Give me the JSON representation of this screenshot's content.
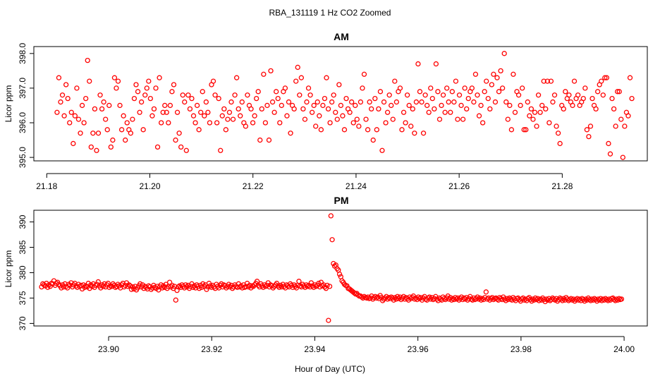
{
  "chart_data": {
    "type": "scatter",
    "title": "RBA_131119  1 Hz CO2 Zoomed",
    "xlabel": "Hour of Day (UTC)",
    "point_color": "#ff0000",
    "panels": [
      {
        "title": "AM",
        "ylabel": "Licor ppm",
        "xlim": [
          21.1775,
          21.2965
        ],
        "ylim": [
          394.9,
          398.2
        ],
        "x_ticks": [
          21.18,
          21.2,
          21.22,
          21.24,
          21.26,
          21.28
        ],
        "x_tick_labels": [
          "21.18",
          "21.20",
          "21.22",
          "21.24",
          "21.26",
          "21.28"
        ],
        "y_ticks": [
          395,
          396,
          397,
          398
        ],
        "y_tick_labels": [
          "395.0",
          "396.0",
          "397.0",
          "398.0"
        ],
        "x_start": 21.182,
        "x_end": 21.2935,
        "y_values": [
          396.3,
          397.3,
          396.6,
          396.8,
          396.2,
          397.1,
          396.7,
          396.0,
          396.3,
          395.4,
          396.2,
          397.0,
          396.1,
          395.7,
          396.5,
          396.0,
          396.7,
          397.8,
          397.2,
          395.3,
          395.7,
          396.4,
          395.2,
          395.7,
          396.8,
          396.4,
          396.6,
          396.1,
          395.8,
          396.5,
          395.3,
          395.5,
          397.3,
          397.0,
          397.2,
          396.5,
          395.8,
          396.2,
          395.5,
          396.0,
          395.8,
          395.7,
          396.1,
          396.7,
          397.1,
          396.9,
          396.3,
          396.6,
          395.8,
          396.8,
          397.0,
          397.2,
          396.7,
          396.2,
          396.4,
          397.0,
          395.3,
          397.3,
          396.0,
          396.3,
          396.5,
          396.3,
          396.0,
          396.5,
          396.9,
          397.1,
          395.5,
          396.3,
          395.7,
          395.3,
          396.8,
          396.6,
          395.2,
          396.8,
          396.4,
          396.7,
          396.2,
          396.0,
          396.5,
          395.8,
          396.3,
          396.9,
          396.2,
          396.6,
          396.3,
          396.0,
          397.1,
          397.2,
          396.8,
          396.0,
          396.7,
          395.2,
          396.2,
          396.4,
          395.8,
          396.1,
          396.3,
          396.6,
          396.1,
          396.8,
          397.3,
          396.4,
          396.2,
          396.6,
          396.0,
          395.9,
          396.8,
          396.5,
          396.4,
          396.0,
          396.2,
          396.7,
          396.9,
          395.5,
          396.4,
          397.4,
          396.0,
          396.5,
          395.5,
          397.5,
          396.6,
          396.3,
          396.9,
          396.7,
          396.0,
          396.5,
          396.9,
          397.0,
          396.2,
          396.6,
          395.7,
          396.5,
          396.4,
          397.2,
          397.6,
          396.8,
          397.3,
          396.4,
          396.1,
          396.6,
          397.0,
          396.8,
          396.3,
          396.5,
          395.9,
          396.6,
          396.2,
          395.8,
          396.5,
          396.7,
          397.3,
          396.4,
          396.0,
          396.6,
          396.8,
          396.3,
          396.1,
          397.1,
          396.5,
          396.2,
          395.8,
          396.7,
          396.4,
          396.3,
          396.6,
          396.0,
          396.5,
          396.1,
          395.9,
          396.6,
          397.0,
          397.4,
          396.1,
          395.8,
          396.6,
          396.4,
          395.5,
          396.7,
          395.8,
          396.4,
          396.9,
          395.2,
          396.6,
          396.0,
          396.3,
          396.8,
          396.5,
          396.1,
          397.2,
          396.6,
          396.9,
          397.0,
          395.8,
          396.3,
          396.0,
          396.8,
          396.5,
          395.9,
          396.4,
          395.7,
          396.6,
          397.7,
          396.9,
          396.6,
          395.7,
          396.8,
          396.5,
          396.3,
          397.0,
          396.7,
          396.4,
          397.7,
          396.9,
          396.1,
          396.5,
          396.8,
          396.3,
          397.0,
          396.6,
          396.3,
          396.9,
          396.6,
          397.2,
          396.1,
          396.8,
          396.5,
          396.1,
          397.0,
          396.4,
          396.7,
          396.9,
          397.0,
          396.6,
          397.4,
          396.8,
          396.2,
          396.5,
          396.0,
          396.9,
          397.2,
          396.7,
          396.4,
          397.1,
          397.4,
          396.6,
          397.3,
          396.9,
          397.5,
          397.0,
          398.0,
          396.6,
          396.1,
          396.5,
          395.8,
          397.4,
          396.3,
          396.9,
          396.8,
          396.5,
          397.0,
          395.8,
          395.8,
          396.6,
          396.2,
          396.4,
          396.1,
          396.3,
          395.9,
          396.8,
          396.3,
          396.5,
          397.2,
          396.4,
          397.2,
          396.0,
          397.2,
          396.6,
          396.8,
          395.9,
          395.7,
          395.4,
          396.5,
          396.4,
          396.9,
          396.7,
          396.8,
          396.6,
          396.5,
          397.2,
          396.7,
          396.8,
          396.5,
          396.6,
          396.7,
          397.0,
          395.8,
          395.6,
          395.9,
          396.7,
          396.5,
          396.4,
          396.9,
          397.1,
          397.2,
          396.8,
          397.3,
          397.3,
          395.4,
          395.1,
          396.7,
          396.4,
          395.9,
          396.9,
          396.9,
          396.1,
          395.0,
          395.9,
          396.3,
          396.2,
          397.3,
          396.7
        ]
      },
      {
        "title": "PM",
        "ylabel": "Licor ppm",
        "xlim": [
          23.8855,
          24.0045
        ],
        "ylim": [
          369.5,
          392.3
        ],
        "x_ticks": [
          23.9,
          23.92,
          23.94,
          23.96,
          23.98,
          24.0
        ],
        "x_tick_labels": [
          "23.90",
          "23.92",
          "23.94",
          "23.96",
          "23.98",
          "24.00"
        ],
        "y_ticks": [
          370,
          375,
          380,
          385,
          390
        ],
        "y_tick_labels": [
          "370",
          "375",
          "380",
          "385",
          "390"
        ],
        "x_start": 23.887,
        "x_end": 23.9995,
        "y_values": [
          377.2,
          377.8,
          377.6,
          377.4,
          377.9,
          377.1,
          377.6,
          377.3,
          377.9,
          377.8,
          378.4,
          377.5,
          377.9,
          378.1,
          377.7,
          377.4,
          377.0,
          377.6,
          377.2,
          377.8,
          377.3,
          377.0,
          377.7,
          377.5,
          378.0,
          377.2,
          377.6,
          377.9,
          377.4,
          377.1,
          377.7,
          377.3,
          377.5,
          376.8,
          377.6,
          377.1,
          377.4,
          377.2,
          377.9,
          376.9,
          377.6,
          377.3,
          377.8,
          377.1,
          377.5,
          377.7,
          378.2,
          377.4,
          377.0,
          377.6,
          377.3,
          377.8,
          377.2,
          377.6,
          377.9,
          377.1,
          377.4,
          377.3,
          377.8,
          377.5,
          377.1,
          377.3,
          377.7,
          377.4,
          377.0,
          377.6,
          377.9,
          377.2,
          377.5,
          378.0,
          377.3,
          377.6,
          377.4,
          376.7,
          377.2,
          376.8,
          377.3,
          376.6,
          377.0,
          377.4,
          377.8,
          377.2,
          377.6,
          376.9,
          377.3,
          377.1,
          376.8,
          377.4,
          377.2,
          376.7,
          377.0,
          377.5,
          377.1,
          376.9,
          377.3,
          376.6,
          377.2,
          377.6,
          377.0,
          377.4,
          377.1,
          377.7,
          376.9,
          377.3,
          378.1,
          377.2,
          377.5,
          376.9,
          377.3,
          374.6,
          376.5,
          377.2,
          377.4,
          377.1,
          377.6,
          377.3,
          377.0,
          377.6,
          377.2,
          377.5,
          376.9,
          377.3,
          377.8,
          377.1,
          377.4,
          377.0,
          377.6,
          377.3,
          376.9,
          377.5,
          377.1,
          377.8,
          377.3,
          377.6,
          376.7,
          377.2,
          377.9,
          377.4,
          377.1,
          377.5,
          377.2,
          376.9,
          377.7,
          377.3,
          377.0,
          377.5,
          377.8,
          377.2,
          377.6,
          377.4,
          377.0,
          377.3,
          377.7,
          377.2,
          377.5,
          376.9,
          377.2,
          377.6,
          377.3,
          377.1,
          377.8,
          377.2,
          377.4,
          377.0,
          377.6,
          377.1,
          377.3,
          377.9,
          377.2,
          377.5,
          377.0,
          377.4,
          377.3,
          377.6,
          377.9,
          378.3,
          377.5,
          377.2,
          377.8,
          377.4,
          377.1,
          377.6,
          377.3,
          377.5,
          378.0,
          377.2,
          377.6,
          377.4,
          377.0,
          377.3,
          377.6,
          377.9,
          377.4,
          377.1,
          377.5,
          377.2,
          377.7,
          377.3,
          377.0,
          377.6,
          377.4,
          377.2,
          377.8,
          377.5,
          377.1,
          377.6,
          377.3,
          377.0,
          377.5,
          378.3,
          377.4,
          377.2,
          377.7,
          377.4,
          377.1,
          377.6,
          377.3,
          377.5,
          377.2,
          378.0,
          377.4,
          377.1,
          377.6,
          377.3,
          377.5,
          377.9,
          377.2,
          378.1,
          377.4,
          377.6,
          377.2,
          376.9,
          377.5,
          370.6,
          377.3,
          391.2,
          386.5,
          381.8,
          381.3,
          381.5,
          380.8,
          380.5,
          379.7,
          379.2,
          378.4,
          378.1,
          377.7,
          377.5,
          377.4,
          376.9,
          376.8,
          376.6,
          376.4,
          376.2,
          376.0,
          375.8,
          375.9,
          375.6,
          375.4,
          375.4,
          375.2,
          375.0,
          375.3,
          375.1,
          375.0,
          375.2,
          374.9,
          375.0,
          375.4,
          374.8,
          375.1,
          375.3,
          375.0,
          375.2,
          374.9,
          375.5,
          375.1,
          374.5,
          374.8,
          375.0,
          375.3,
          374.8,
          375.1,
          374.9,
          375.2,
          375.0,
          374.6,
          375.1,
          374.8,
          375.3,
          374.9,
          375.2,
          374.7,
          375.0,
          375.3,
          374.8,
          375.1,
          374.9,
          374.6,
          375.2,
          374.9,
          375.1,
          375.4,
          374.8,
          375.0,
          374.7,
          375.2,
          374.9,
          375.1,
          374.6,
          375.0,
          375.3,
          374.8,
          374.6,
          375.0,
          375.2,
          374.8,
          375.1,
          374.7,
          374.9,
          375.3,
          374.8,
          374.5,
          375.0,
          374.8,
          374.6,
          375.2,
          374.9,
          374.7,
          375.0,
          375.4,
          374.8,
          375.1,
          374.6,
          374.9,
          374.7,
          375.1,
          374.8,
          375.0,
          374.6,
          374.9,
          375.2,
          374.7,
          375.0,
          374.8,
          375.1,
          374.6,
          374.9,
          375.3,
          374.8,
          374.6,
          375.0,
          374.7,
          374.9,
          375.2,
          374.8,
          375.0,
          374.6,
          374.9,
          374.7,
          375.1,
          376.2,
          374.8,
          375.0,
          374.6,
          374.9,
          375.1,
          374.7,
          374.9,
          375.0,
          374.8,
          374.6,
          375.1,
          374.9,
          374.7,
          375.2,
          374.8,
          374.5,
          374.9,
          374.7,
          375.0,
          374.8,
          374.6,
          375.1,
          374.8,
          374.5,
          374.9,
          375.0,
          374.7,
          374.4,
          374.8,
          375.0,
          374.6,
          374.8,
          374.5,
          374.9,
          375.1,
          374.7,
          374.4,
          374.8,
          374.6,
          375.0,
          374.7,
          374.9,
          374.5,
          374.8,
          374.6,
          375.0,
          374.7,
          374.3,
          374.8,
          374.6,
          374.9,
          374.5,
          374.7,
          375.0,
          374.8,
          374.6,
          374.9,
          374.4,
          374.7,
          375.0,
          374.8,
          374.5,
          374.9,
          374.6,
          375.1,
          374.8,
          374.5,
          374.7,
          374.9,
          374.6,
          374.8,
          374.4,
          374.7,
          374.9,
          374.6,
          374.8,
          374.5,
          374.9,
          374.7,
          374.4,
          374.8,
          374.6,
          375.0,
          374.7,
          374.5,
          374.8,
          374.6,
          374.9,
          374.7,
          374.4,
          374.8,
          374.6,
          374.9,
          374.5,
          374.8,
          374.6,
          374.9,
          374.7,
          374.5,
          374.8,
          374.6,
          374.9,
          375.0,
          374.7,
          374.5,
          374.8,
          374.6,
          374.9,
          374.7,
          374.8
        ]
      }
    ]
  }
}
